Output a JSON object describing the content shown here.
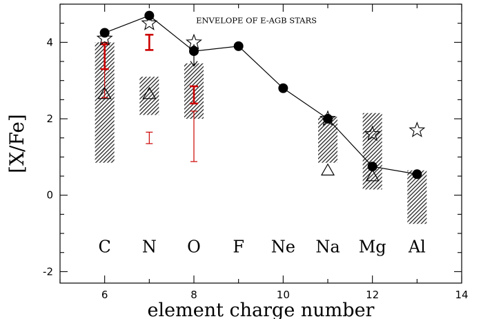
{
  "chart_data": {
    "type": "scatter",
    "title": "",
    "xlabel": "element charge number",
    "ylabel": "[X/Fe]",
    "xlim": [
      5,
      14
    ],
    "ylim": [
      -2.3,
      5.0
    ],
    "xticks": [
      6,
      8,
      10,
      12,
      14
    ],
    "yticks": [
      -2,
      0,
      2,
      4
    ],
    "annotation": "ENVELOPE OF E-AGB STARS",
    "element_labels": [
      {
        "x": 6,
        "label": "C"
      },
      {
        "x": 7,
        "label": "N"
      },
      {
        "x": 8,
        "label": "O"
      },
      {
        "x": 9,
        "label": "F"
      },
      {
        "x": 10,
        "label": "Ne"
      },
      {
        "x": 11,
        "label": "Na"
      },
      {
        "x": 12,
        "label": "Mg"
      },
      {
        "x": 13,
        "label": "Al"
      }
    ],
    "series": [
      {
        "marker": "filled-circle-line",
        "points": [
          {
            "x": 6,
            "y": 4.25
          },
          {
            "x": 7,
            "y": 4.7
          },
          {
            "x": 8,
            "y": 3.77
          },
          {
            "x": 9,
            "y": 3.9
          },
          {
            "x": 10,
            "y": 2.8
          },
          {
            "x": 11,
            "y": 2.0
          },
          {
            "x": 12,
            "y": 0.75
          },
          {
            "x": 13,
            "y": 0.55
          }
        ]
      },
      {
        "marker": "hatched-range",
        "ranges": [
          {
            "x": 6,
            "low": 0.85,
            "high": 4.0
          },
          {
            "x": 7,
            "low": 2.1,
            "high": 3.1
          },
          {
            "x": 8,
            "low": 2.0,
            "high": 3.45
          },
          {
            "x": 11,
            "low": 0.85,
            "high": 2.05
          },
          {
            "x": 12,
            "low": 0.15,
            "high": 2.15
          },
          {
            "x": 13,
            "low": -0.75,
            "high": 0.65
          }
        ]
      },
      {
        "marker": "open-star",
        "points": [
          {
            "x": 6,
            "y": 4.1
          },
          {
            "x": 7,
            "y": 4.5
          },
          {
            "x": 8,
            "y": 4.0
          },
          {
            "x": 11,
            "y": 2.0
          },
          {
            "x": 12,
            "y": 1.6
          },
          {
            "x": 13,
            "y": 1.7
          }
        ]
      },
      {
        "marker": "open-triangle",
        "points": [
          {
            "x": 6,
            "y": 2.65
          },
          {
            "x": 7,
            "y": 2.65
          },
          {
            "x": 11,
            "y": 0.65
          },
          {
            "x": 12,
            "y": 0.5
          }
        ]
      },
      {
        "marker": "red-error-bar",
        "bars": [
          {
            "x": 6,
            "low": 3.3,
            "high": 3.95,
            "style": "thick"
          },
          {
            "x": 6,
            "low": 2.55,
            "high": 4.0,
            "style": "thin"
          },
          {
            "x": 7,
            "low": 3.8,
            "high": 4.2,
            "style": "thick"
          },
          {
            "x": 7,
            "low": 1.35,
            "high": 1.65,
            "style": "thin"
          },
          {
            "x": 8,
            "low": 2.4,
            "high": 2.85,
            "style": "thick"
          },
          {
            "x": 8,
            "low": 0.88,
            "high": 2.2,
            "style": "thin"
          }
        ]
      },
      {
        "marker": "upper-limit-arrow",
        "points": [
          {
            "x": 8,
            "from": 3.95,
            "to": 3.38
          }
        ]
      }
    ],
    "colors": {
      "error_bars": "#cc0000",
      "markers": "#000000",
      "hatch": "#222222"
    }
  }
}
